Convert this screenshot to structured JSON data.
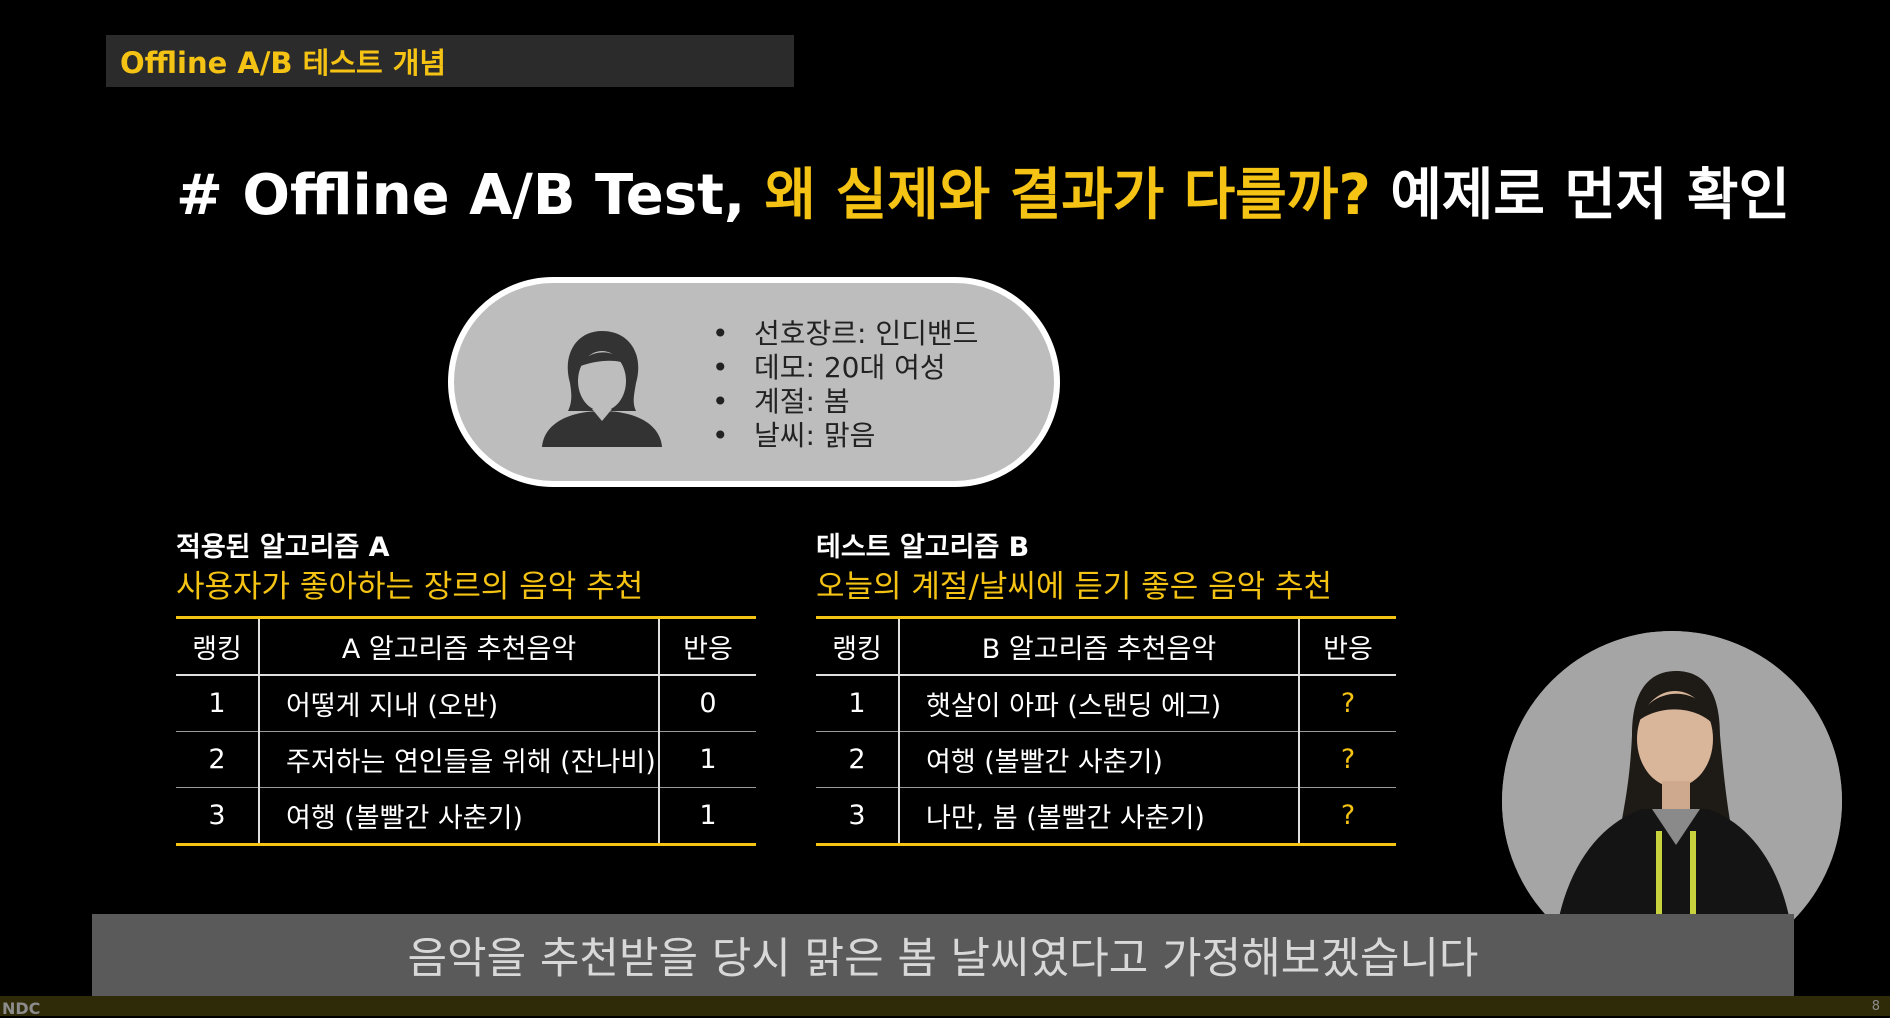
{
  "section_tag": "Offline A/B 테스트 개념",
  "headline": {
    "prefix": "# Offline A/B Test, ",
    "highlight": "왜 실제와 결과가 다를까?",
    "suffix": " 예제로 먼저 확인"
  },
  "profile": {
    "avatar_icon": "woman-user-icon",
    "attributes": [
      "선호장르: 인디밴드",
      "데모: 20대 여성",
      "계절: 봄",
      "날씨: 맑음"
    ]
  },
  "algorithm_a": {
    "title": "적용된 알고리즘 A",
    "subtitle": "사용자가 좋아하는 장르의 음악 추천",
    "headers": [
      "랭킹",
      "A 알고리즘 추천음악",
      "반응"
    ],
    "rows": [
      {
        "rank": "1",
        "song": "어떻게 지내 (오반)",
        "response": "0"
      },
      {
        "rank": "2",
        "song": "주저하는 연인들을 위해 (잔나비)",
        "response": "1"
      },
      {
        "rank": "3",
        "song": "여행 (볼빨간 사춘기)",
        "response": "1"
      }
    ]
  },
  "algorithm_b": {
    "title": "테스트 알고리즘 B",
    "subtitle": "오늘의 계절/날씨에 듣기 좋은 음악 추천",
    "headers": [
      "랭킹",
      "B 알고리즘 추천음악",
      "반응"
    ],
    "rows": [
      {
        "rank": "1",
        "song": "햇살이 아파 (스탠딩 에그)",
        "response": "?"
      },
      {
        "rank": "2",
        "song": "여행 (볼빨간 사춘기)",
        "response": "?"
      },
      {
        "rank": "3",
        "song": "나만, 봄 (볼빨간 사춘기)",
        "response": "?"
      }
    ]
  },
  "subtitle": "음악을 추천받을 당시 맑은 봄 날씨였다고 가정해보겠습니다",
  "footer": {
    "logo": "NDC",
    "page": "8"
  },
  "colors": {
    "accent": "#f5c313",
    "background": "#000000",
    "card": "#bdbdbd"
  }
}
